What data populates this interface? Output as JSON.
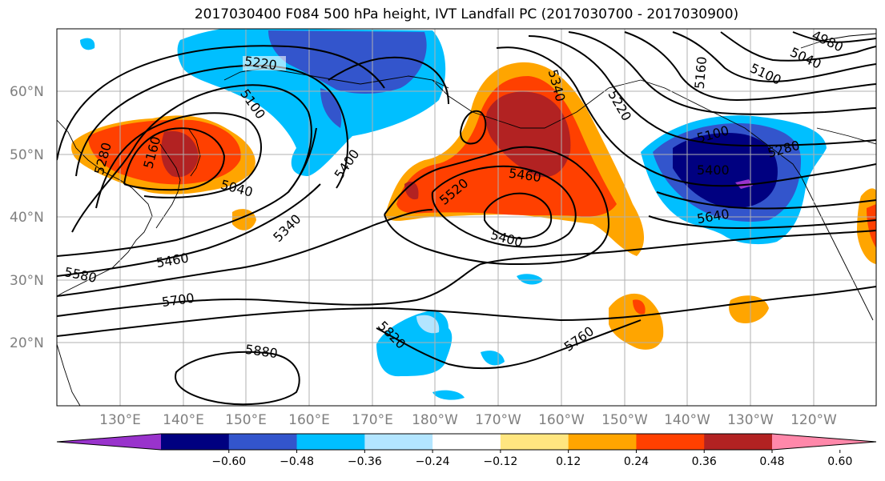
{
  "title": "2017030400 F084 500 hPa height, IVT Landfall PC (2017030700 - 2017030900)",
  "lat_labels": [
    "60°N",
    "50°N",
    "40°N",
    "30°N",
    "20°N"
  ],
  "lon_labels": [
    "130°E",
    "140°E",
    "150°E",
    "160°E",
    "170°E",
    "180°W",
    "170°W",
    "160°W",
    "150°W",
    "140°W",
    "130°W",
    "120°W"
  ],
  "contour_labels": [
    "5220",
    "5100",
    "5280",
    "5160",
    "5040",
    "5400",
    "5340",
    "5460",
    "5580",
    "5700",
    "5880",
    "5820",
    "5520",
    "5460",
    "5400",
    "5340",
    "5220",
    "5160",
    "5100",
    "5040",
    "4980",
    "5100",
    "5280",
    "5400",
    "5640",
    "5760"
  ],
  "colorbar": {
    "colors": [
      "#9933cc",
      "#000080",
      "#3355cc",
      "#00bfff",
      "#b3e5ff",
      "#ffffff",
      "#ffe680",
      "#ffa500",
      "#ff4000",
      "#b22222",
      "#ff88aa"
    ],
    "tick_labels": [
      "−0.60",
      "−0.48",
      "−0.36",
      "−0.24",
      "−0.12",
      "0.12",
      "0.24",
      "0.36",
      "0.48",
      "0.60"
    ]
  }
}
